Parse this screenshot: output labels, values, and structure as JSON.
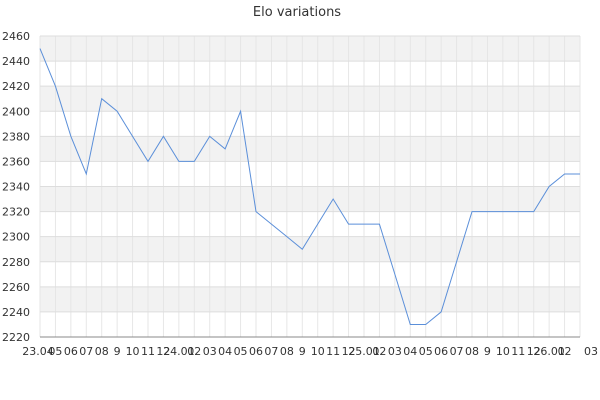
{
  "chart_data": {
    "type": "line",
    "title": "Elo variations",
    "xlabel": "",
    "ylabel": "",
    "ylim": [
      2220,
      2460
    ],
    "yticks": [
      2220,
      2240,
      2260,
      2280,
      2300,
      2320,
      2340,
      2360,
      2380,
      2400,
      2420,
      2440,
      2460
    ],
    "x_tick_labels": [
      "23.04",
      "05",
      "06",
      "07",
      "08",
      "9",
      "10",
      "11",
      "12",
      "24.01",
      "02",
      "03",
      "04",
      "05",
      "06",
      "07",
      "08",
      "9",
      "10",
      "11",
      "12",
      "25.01",
      "02",
      "03",
      "04",
      "05",
      "06",
      "07",
      "08",
      "9",
      "10",
      "11",
      "12",
      "26.01",
      "02",
      "03"
    ],
    "grid": true,
    "legend": "none",
    "line_color": "#5b8fd9",
    "band_color": "#f2f2f2",
    "series": [
      {
        "values": [
          2450,
          2420,
          2380,
          2350,
          2410,
          2400,
          2380,
          2360,
          2380,
          2360,
          2360,
          2380,
          2370,
          2400,
          2320,
          2310,
          2300,
          2290,
          2310,
          2330,
          2310,
          2310,
          2310,
          2270,
          2230,
          2230,
          2240,
          2280,
          2320,
          2320,
          2320,
          2320,
          2320,
          2340,
          2350,
          2350
        ]
      }
    ]
  }
}
